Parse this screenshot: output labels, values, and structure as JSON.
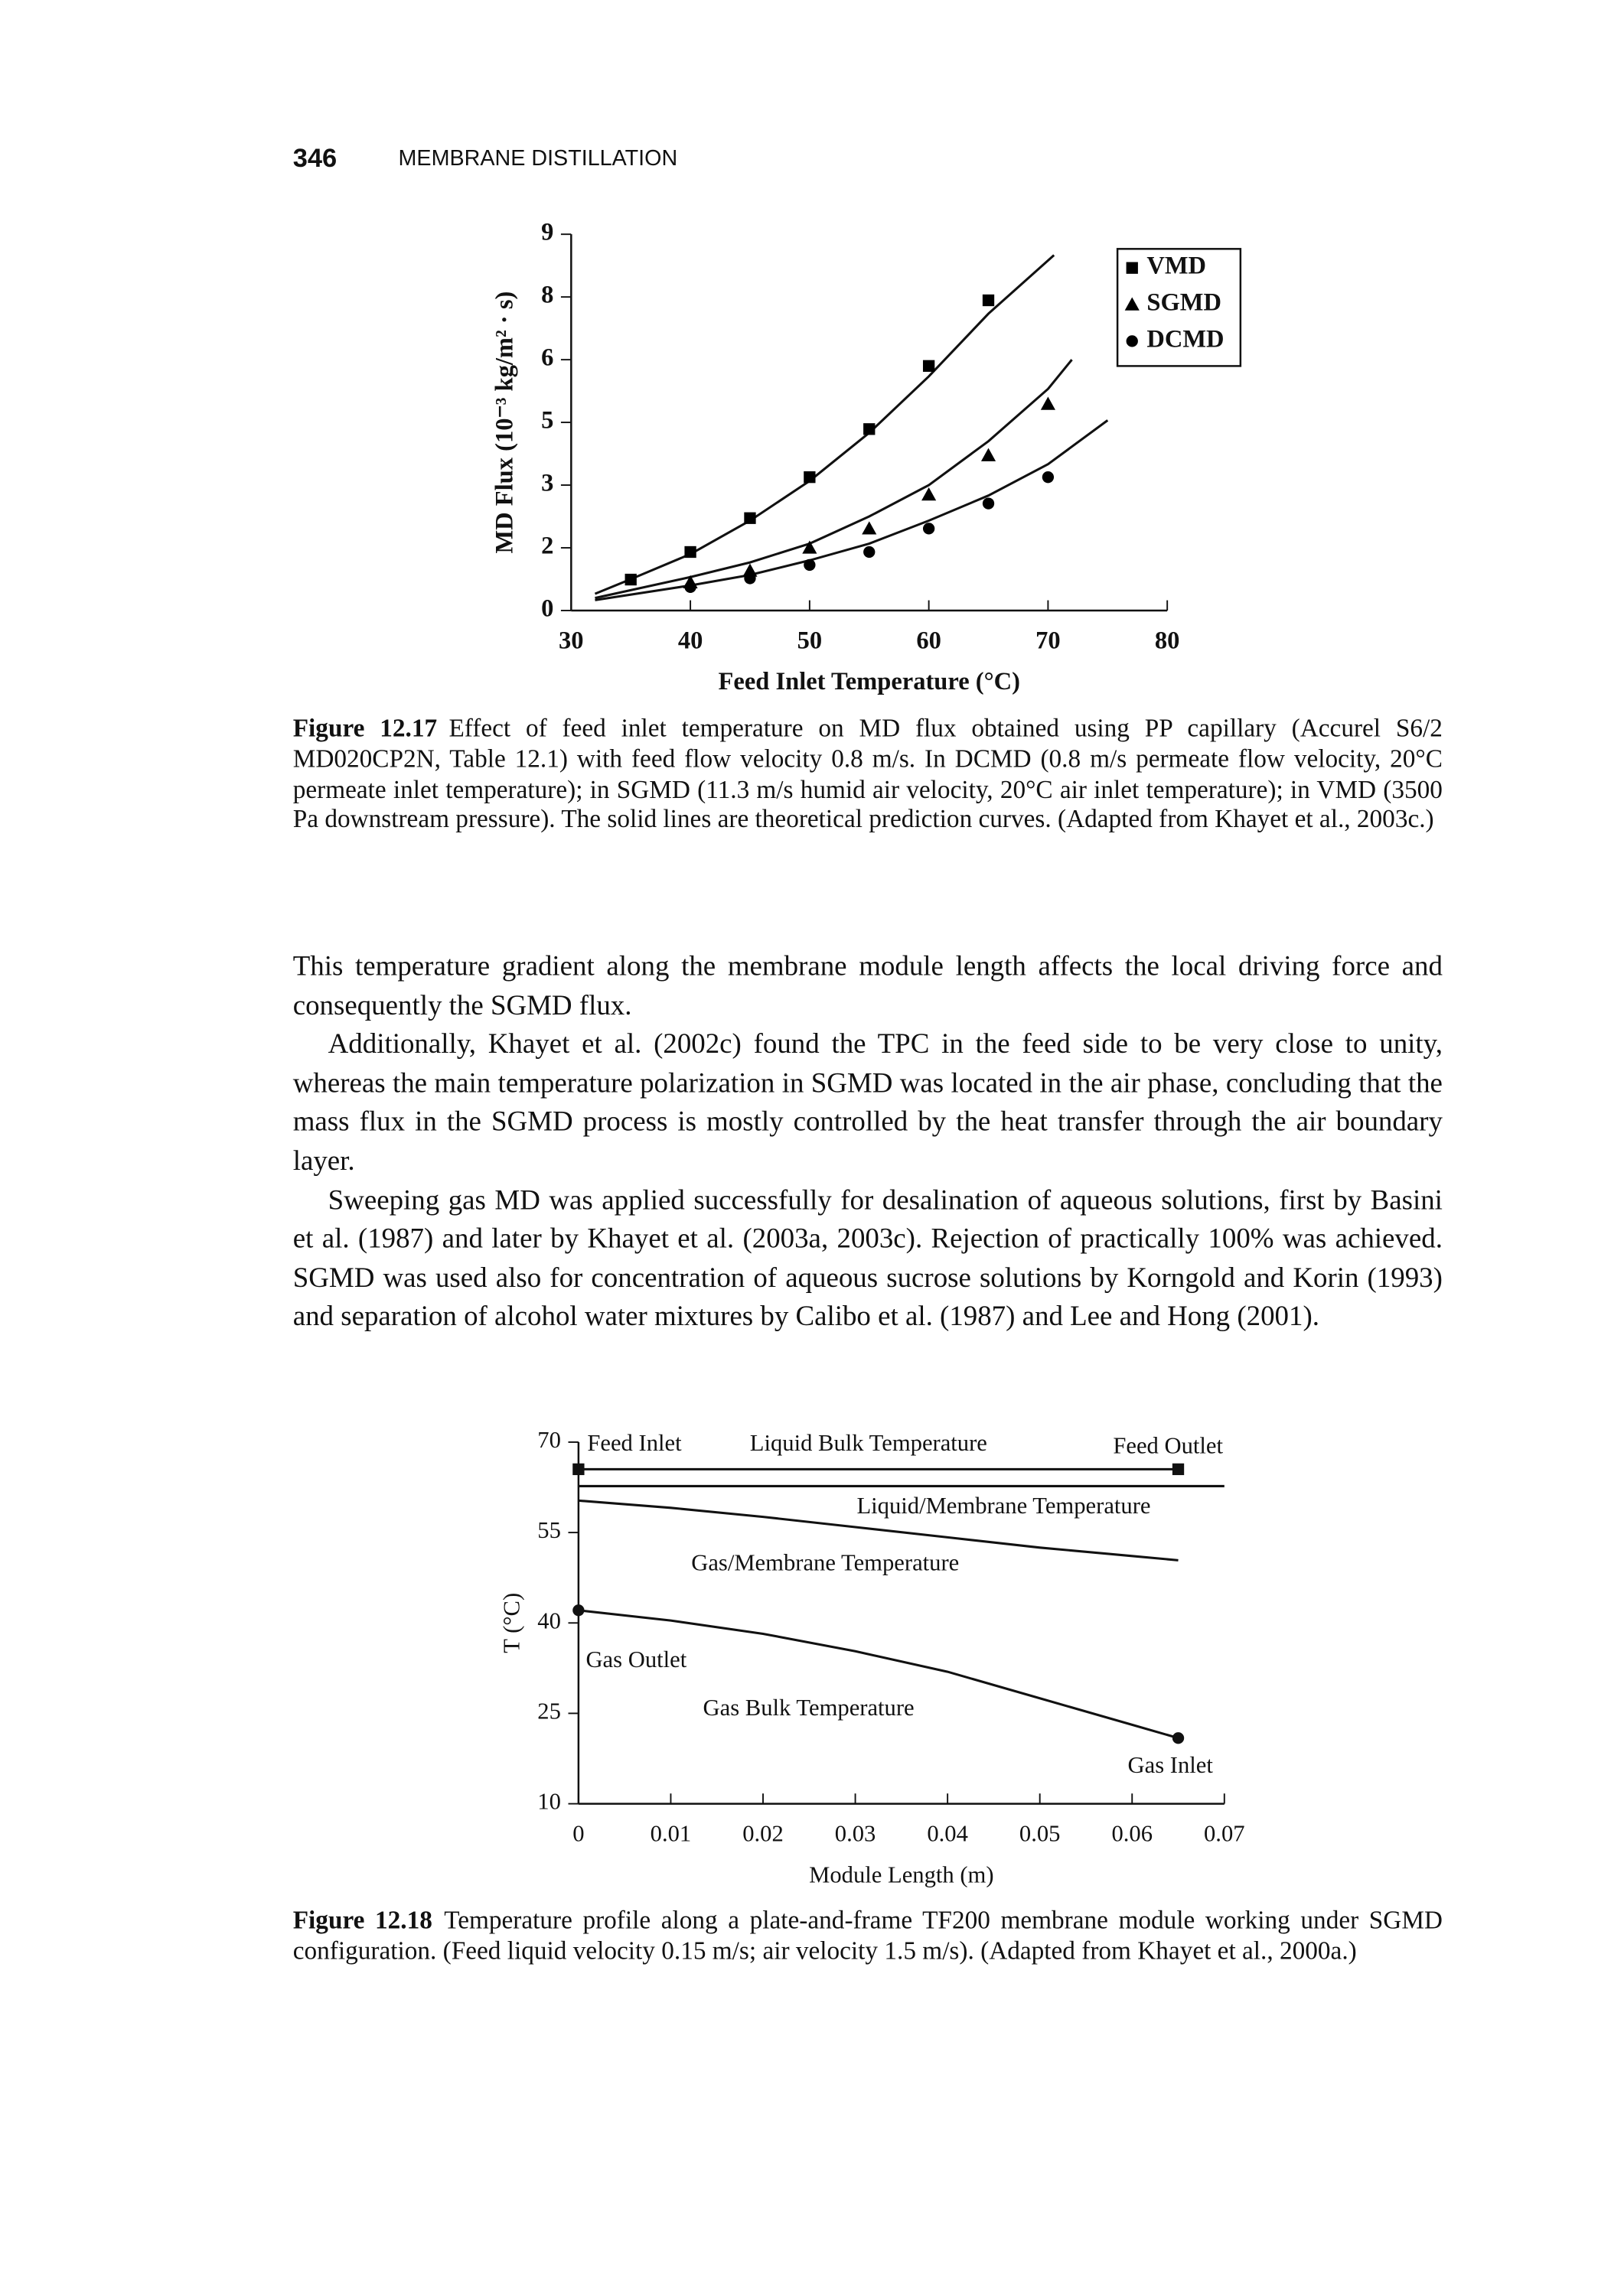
{
  "header": {
    "page_number": "346",
    "running_title": "MEMBRANE DISTILLATION"
  },
  "figures": [
    {
      "chart_data": {
        "type": "scatter",
        "xlabel": "Feed Inlet Temperature (°C)",
        "ylabel": "MD Flux (10⁻³ kg/m² · s)",
        "xlim": [
          30,
          80
        ],
        "xticks": [
          30,
          40,
          50,
          60,
          70,
          80
        ],
        "ylim": [
          0,
          9
        ],
        "yticks": [
          0,
          {
            "value": 1.5,
            "label": "2"
          },
          3,
          {
            "value": 4.5,
            "label": "5"
          },
          6,
          {
            "value": 7.5,
            "label": "8"
          },
          9
        ],
        "legend": "upper right",
        "series": [
          {
            "name": "VMD",
            "marker": "square",
            "color": "#000000",
            "x": [
              35,
              40,
              45,
              50,
              55,
              60,
              65
            ],
            "values": [
              0.74,
              1.4,
              2.21,
              3.19,
              4.34,
              5.85,
              7.42
            ]
          },
          {
            "name": "SGMD",
            "marker": "triangle",
            "color": "#000000",
            "x": [
              40,
              45,
              50,
              55,
              60,
              65,
              70
            ],
            "values": [
              0.67,
              0.95,
              1.5,
              1.96,
              2.77,
              3.71,
              4.94
            ]
          },
          {
            "name": "DCMD",
            "marker": "circle",
            "color": "#000000",
            "x": [
              40,
              45,
              50,
              55,
              60,
              65,
              70
            ],
            "values": [
              0.56,
              0.77,
              1.09,
              1.4,
              1.96,
              2.56,
              3.19
            ]
          }
        ],
        "curves": [
          {
            "x": [
              32,
              35,
              40,
              45,
              50,
              55,
              60,
              65,
              70.5
            ],
            "values": [
              0.4,
              0.75,
              1.35,
              2.15,
              3.1,
              4.25,
              5.6,
              7.1,
              8.5
            ]
          },
          {
            "x": [
              32,
              40,
              45,
              50,
              55,
              60,
              65,
              70,
              72
            ],
            "values": [
              0.3,
              0.8,
              1.15,
              1.6,
              2.25,
              3.0,
              4.05,
              5.3,
              6.0
            ]
          },
          {
            "x": [
              32,
              40,
              45,
              50,
              55,
              60,
              65,
              70,
              75
            ],
            "values": [
              0.25,
              0.6,
              0.85,
              1.2,
              1.6,
              2.15,
              2.75,
              3.5,
              4.55
            ]
          }
        ]
      },
      "caption": {
        "label": "Figure 12.17",
        "text": "Effect of feed inlet temperature on MD flux obtained using PP capillary (Accurel S6/2 MD020CP2N, Table 12.1) with feed flow velocity 0.8 m/s. In DCMD (0.8 m/s permeate flow velocity, 20°C permeate inlet temperature); in SGMD (11.3 m/s humid air velocity, 20°C air inlet temperature); in VMD (3500 Pa downstream pressure). The solid lines are theoretical prediction curves. (Adapted from Khayet et al., 2003c.)"
      }
    },
    {
      "chart_data": {
        "type": "line",
        "xlabel": "Module Length (m)",
        "ylabel": "T (°C)",
        "xlim": [
          0,
          0.07
        ],
        "xticks": [
          0,
          0.01,
          0.02,
          0.03,
          0.04,
          0.05,
          0.06,
          0.07
        ],
        "ylim": [
          10,
          70
        ],
        "yticks": [
          10,
          25,
          40,
          55,
          70
        ],
        "lines": [
          {
            "marker": "square",
            "x": [
              0,
              0.065
            ],
            "values": [
              65.5,
              65.5
            ]
          },
          {
            "x": [
              0,
              0.07
            ],
            "values": [
              62.7,
              62.7
            ]
          },
          {
            "x": [
              0,
              0.01,
              0.02,
              0.03,
              0.04,
              0.05,
              0.06,
              0.065
            ],
            "values": [
              60.3,
              59.1,
              57.6,
              55.9,
              54.2,
              52.5,
              51.1,
              50.4
            ]
          },
          {
            "marker": "circle",
            "x": [
              0,
              0.01,
              0.02,
              0.03,
              0.04,
              0.05,
              0.06,
              0.065
            ],
            "values": [
              42.1,
              40.4,
              38.2,
              35.3,
              31.9,
              27.5,
              23.1,
              20.9
            ]
          }
        ],
        "annotations": [
          "Feed Inlet",
          "Liquid Bulk Temperature",
          "Feed Outlet",
          "Liquid/Membrane Temperature",
          "Gas/Membrane Temperature",
          "Gas Outlet",
          "Gas Bulk Temperature",
          "Gas Inlet"
        ]
      },
      "caption": {
        "label": "Figure 12.18",
        "text": "Temperature profile along a plate-and-frame TF200 membrane module working under SGMD configuration. (Feed liquid velocity 0.15 m/s; air velocity 1.5 m/s). (Adapted from Khayet et al., 2000a.)"
      }
    }
  ],
  "paragraphs": [
    "This temperature gradient along the membrane module length affects the local driving force and consequently the SGMD flux.",
    "Additionally, Khayet et al. (2002c) found the TPC in the feed side to be very close to unity, whereas the main temperature polarization in SGMD was located in the air phase, concluding that the mass flux in the SGMD process is mostly controlled by the heat transfer through the air boundary layer.",
    "Sweeping gas MD was applied successfully for desalination of aqueous solutions, first by Basini et al. (1987) and later by Khayet et al. (2003a, 2003c). Rejection of practically 100% was achieved. SGMD was used also for concentration of aqueous sucrose solutions by Korngold and Korin (1993) and separation of alcohol water mixtures by Calibo et al. (1987) and Lee and Hong (2001)."
  ]
}
